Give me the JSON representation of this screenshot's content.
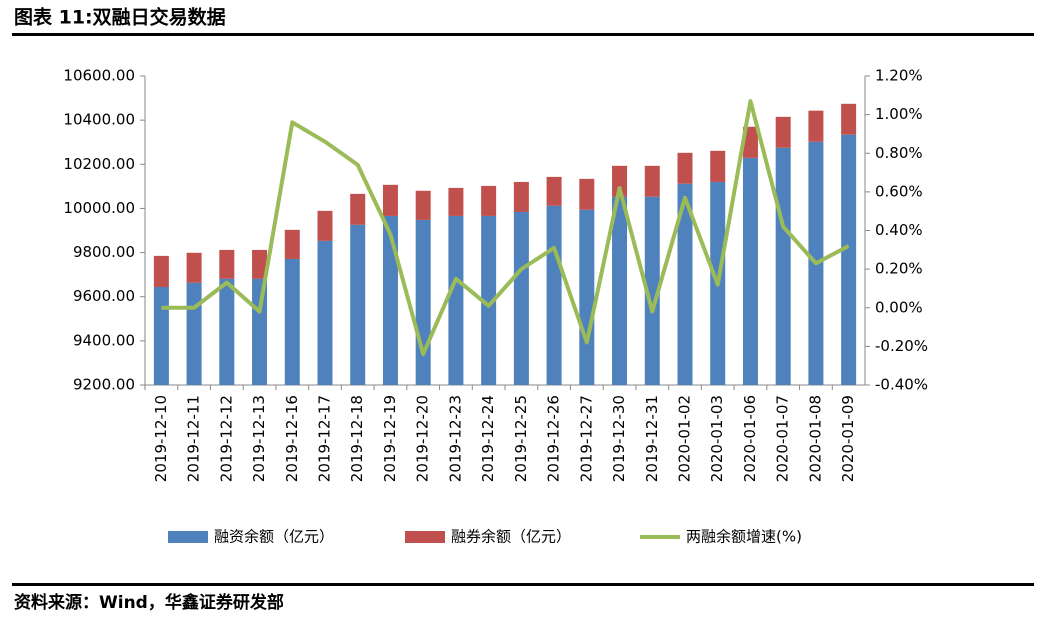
{
  "chart_data": {
    "type": "bar-line",
    "title": "图表 11:双融日交易数据",
    "source": "资料来源：Wind，华鑫证券研发部",
    "categories": [
      "2019-12-10",
      "2019-12-11",
      "2019-12-12",
      "2019-12-13",
      "2019-12-16",
      "2019-12-17",
      "2019-12-18",
      "2019-12-19",
      "2019-12-20",
      "2019-12-23",
      "2019-12-24",
      "2019-12-25",
      "2019-12-26",
      "2019-12-27",
      "2019-12-30",
      "2019-12-31",
      "2020-01-02",
      "2020-01-03",
      "2020-01-06",
      "2020-01-07",
      "2020-01-08",
      "2020-01-09"
    ],
    "series": [
      {
        "name": "融资余额（亿元）",
        "color": "#4f81bd",
        "stack": true,
        "values": [
          9644,
          9663,
          9681,
          9681,
          9771,
          9853,
          9926,
          9966,
          9948,
          9966,
          9966,
          9984,
          10012,
          9994,
          10053,
          10053,
          10112,
          10120,
          10229,
          10275,
          10302,
          10334
        ]
      },
      {
        "name": "融券余额（亿元）",
        "color": "#c0504d",
        "stack": true,
        "values": [
          141,
          136,
          131,
          131,
          132,
          136,
          140,
          141,
          132,
          127,
          136,
          136,
          131,
          140,
          140,
          140,
          140,
          141,
          141,
          140,
          141,
          140
        ]
      },
      {
        "name": "两融余额增速(%)",
        "color": "#9bbb59",
        "axis": "y2",
        "values": [
          0.0,
          0.0,
          0.13,
          -0.02,
          0.96,
          0.86,
          0.74,
          0.38,
          -0.24,
          0.15,
          0.01,
          0.2,
          0.31,
          -0.18,
          0.62,
          -0.02,
          0.57,
          0.12,
          1.07,
          0.42,
          0.23,
          0.32
        ]
      }
    ],
    "ylim": [
      9200,
      10600
    ],
    "yticks": [
      {
        "value": 9200,
        "label": "9200.00"
      },
      {
        "value": 9400,
        "label": "9400.00"
      },
      {
        "value": 9600,
        "label": "9600.00"
      },
      {
        "value": 9800,
        "label": "9800.00"
      },
      {
        "value": 10000,
        "label": "10000.00"
      },
      {
        "value": 10200,
        "label": "10200.00"
      },
      {
        "value": 10400,
        "label": "10400.00"
      },
      {
        "value": 10600,
        "label": "10600.00"
      }
    ],
    "y2lim": [
      -0.4,
      1.2
    ],
    "y2ticks": [
      {
        "value": -0.4,
        "label": "-0.40%"
      },
      {
        "value": -0.2,
        "label": "-0.20%"
      },
      {
        "value": 0,
        "label": "0.00%"
      },
      {
        "value": 0.2,
        "label": "0.20%"
      },
      {
        "value": 0.4,
        "label": "0.40%"
      },
      {
        "value": 0.6,
        "label": "0.60%"
      },
      {
        "value": 0.8,
        "label": "0.80%"
      },
      {
        "value": 1.0,
        "label": "1.00%"
      },
      {
        "value": 1.2,
        "label": "1.20%"
      }
    ],
    "grid": false,
    "legend": "bottom"
  }
}
